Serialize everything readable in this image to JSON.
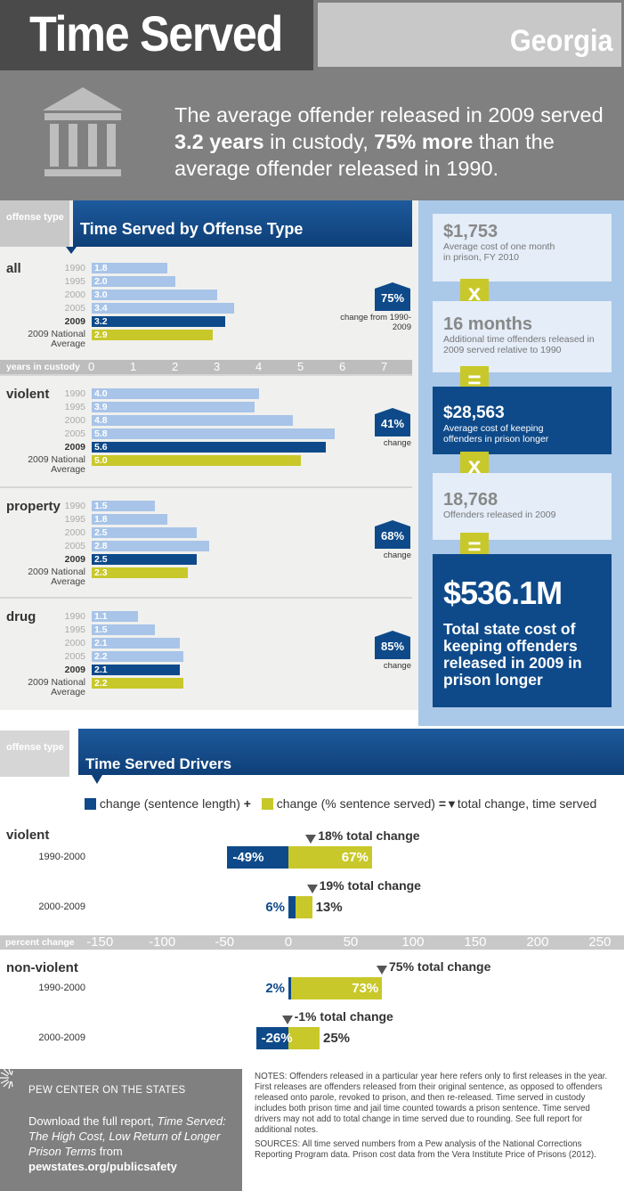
{
  "header": {
    "title": "Time Served",
    "state": "Georgia",
    "headline_parts": [
      "The average offender released in 2009 served ",
      "3.2 years",
      " in custody, ",
      "75% more",
      " than the average offender released in 1990."
    ]
  },
  "offense": {
    "type_label": "offense type",
    "heading": "Time Served by Offense Type",
    "axis_label": "years in custody",
    "axis_ticks": [
      "0",
      "1",
      "2",
      "3",
      "4",
      "5",
      "6",
      "7"
    ],
    "sections": [
      {
        "name": "all",
        "years": [
          "1990",
          "1995",
          "2000",
          "2005",
          "2009",
          "2009 National Average"
        ],
        "values": [
          1.8,
          2.0,
          3.0,
          3.4,
          3.2,
          2.9
        ],
        "labels": [
          "1.8",
          "2.0",
          "3.0",
          "3.4",
          "3.2",
          "2.9"
        ],
        "pct": "75%",
        "change": "change from 1990-2009"
      },
      {
        "name": "violent",
        "years": [
          "1990",
          "1995",
          "2000",
          "2005",
          "2009",
          "2009 National Average"
        ],
        "values": [
          4.0,
          3.9,
          4.8,
          5.8,
          5.6,
          5.0
        ],
        "labels": [
          "4.0",
          "3.9",
          "4.8",
          "5.8",
          "5.6",
          "5.0"
        ],
        "pct": "41%",
        "change": "change"
      },
      {
        "name": "property",
        "years": [
          "1990",
          "1995",
          "2000",
          "2005",
          "2009",
          "2009 National Average"
        ],
        "values": [
          1.5,
          1.8,
          2.5,
          2.8,
          2.5,
          2.3
        ],
        "labels": [
          "1.5",
          "1.8",
          "2.5",
          "2.8",
          "2.5",
          "2.3"
        ],
        "pct": "68%",
        "change": "change"
      },
      {
        "name": "drug",
        "years": [
          "1990",
          "1995",
          "2000",
          "2005",
          "2009",
          "2009 National Average"
        ],
        "values": [
          1.1,
          1.5,
          2.1,
          2.2,
          2.1,
          2.2
        ],
        "labels": [
          "1.1",
          "1.5",
          "2.1",
          "2.2",
          "2.1",
          "2.2"
        ],
        "pct": "85%",
        "change": "change"
      }
    ]
  },
  "cost": {
    "b1_big": "$1,753",
    "b1_sm": "Average cost of one month in prison, FY 2010",
    "op1": "x",
    "b2_big": "16 months",
    "b2_sm": "Additional time offenders released in 2009 served relative to 1990",
    "op2": "=",
    "b3_big": "$28,563",
    "b3_sm": "Average cost of keeping offenders in prison longer",
    "op3": "x",
    "b4_big": "18,768",
    "b4_sm": "Offenders released in 2009",
    "op4": "=",
    "b5_big": "$536.1M",
    "b5_sm": "Total state cost of keeping offenders released in 2009 in prison longer"
  },
  "drivers": {
    "type_label": "offense type",
    "heading": "Time Served Drivers",
    "legend": {
      "a": "change (sentence length)",
      "plus": "+",
      "b": "change (% sentence served)",
      "eq": "=",
      "c": "total change, time served"
    },
    "axis_label": "percent change",
    "axis_ticks": [
      "-150",
      "-100",
      "-50",
      "0",
      "50",
      "100",
      "150",
      "200",
      "250"
    ],
    "groups": [
      {
        "name": "violent",
        "rows": [
          {
            "period": "1990-2000",
            "sentence": -49,
            "served": 67,
            "total": 18,
            "sentence_label": "-49%",
            "served_label": "67%",
            "total_label": "18% total change"
          },
          {
            "period": "2000-2009",
            "sentence": 6,
            "served": 13,
            "total": 19,
            "sentence_label": "6%",
            "served_label": "13%",
            "total_label": "19% total change"
          }
        ]
      },
      {
        "name": "non-violent",
        "rows": [
          {
            "period": "1990-2000",
            "sentence": 2,
            "served": 73,
            "total": 75,
            "sentence_label": "2%",
            "served_label": "73%",
            "total_label": "75% total change"
          },
          {
            "period": "2000-2009",
            "sentence": -26,
            "served": 25,
            "total": -1,
            "sentence_label": "-26%",
            "served_label": "25%",
            "total_label": "-1% total change"
          }
        ]
      }
    ]
  },
  "footer": {
    "org": "PEW CENTER ON THE STATES",
    "dl1": "Download the full report, ",
    "dl_title": "Time Served: The High Cost, Low Return of Longer Prison Terms",
    "dl2": " from",
    "url": "pewstates.org/publicsafety",
    "notes": "NOTES: Offenders released in a particular year here refers only to first releases in the year. First releases are offenders released from their original sentence, as opposed to offenders released onto parole, revoked to prison, and then re-released. Time served in custody includes both prison time and jail time counted towards a prison sentence. Time served drivers may not add to total change in time served due to rounding. See full report for additional notes.",
    "sources": "SOURCES: All time served numbers from a Pew analysis of the National Corrections Reporting Program data. Prison cost data from the Vera Institute Price of Prisons (2012)."
  },
  "colors": {
    "light_bar": "#a8c4e8",
    "dark_bar": "#0e4a8a",
    "national_bar": "#c8c82a",
    "sentence": "#0e4a8a",
    "served": "#c8c82a"
  }
}
